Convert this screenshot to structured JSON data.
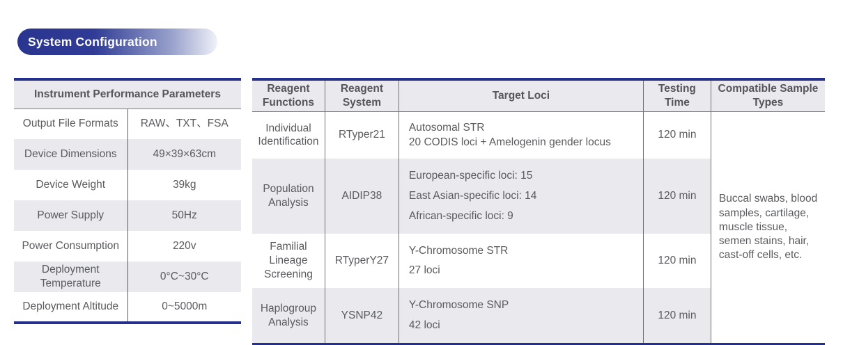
{
  "section_title": "System Configuration",
  "colors": {
    "navy": "#24318c",
    "pill_gradient_start": "#2a3590",
    "pill_gradient_end": "#f0f1f8",
    "stripe_gray": "#e9e9ee",
    "header_text": "#56565a",
    "body_text": "#5a5b5e"
  },
  "left_table": {
    "title": "Instrument Performance Parameters",
    "rows": [
      {
        "label": "Output File Formats",
        "value": "RAW、TXT、FSA"
      },
      {
        "label": "Device Dimensions",
        "value": "49×39×63cm"
      },
      {
        "label": "Device Weight",
        "value": "39kg"
      },
      {
        "label": "Power Supply",
        "value": "50Hz"
      },
      {
        "label": "Power Consumption",
        "value": "220v"
      },
      {
        "label": "Deployment Temperature",
        "value": "0°C~30°C"
      },
      {
        "label": "Deployment Altitude",
        "value": "0~5000m"
      }
    ]
  },
  "right_table": {
    "headers": [
      "Reagent Functions",
      "Reagent System",
      "Target Loci",
      "Testing Time",
      "Compatible Sample Types"
    ],
    "rows": [
      {
        "function": "Individual Identification",
        "system": "RTyper21",
        "target_loci": [
          "Autosomal STR",
          "20 CODIS loci + Amelogenin gender locus"
        ],
        "testing_time": "120 min"
      },
      {
        "function": "Population Analysis",
        "system": "AIDIP38",
        "target_loci": [
          "European-specific loci: 15",
          "East Asian-specific loci: 14",
          "African-specific loci: 9"
        ],
        "testing_time": "120 min"
      },
      {
        "function": "Familial Lineage Screening",
        "system": "RTyperY27",
        "target_loci": [
          "Y-Chromosome STR",
          "27 loci"
        ],
        "testing_time": "120 min"
      },
      {
        "function": "Haplogroup Analysis",
        "system": "YSNP42",
        "target_loci": [
          "Y-Chromosome SNP",
          "42 loci"
        ],
        "testing_time": "120 min"
      }
    ],
    "compatible_sample_types": "Buccal swabs, blood samples, cartilage, muscle tissue, semen stains, hair, cast-off cells, etc."
  }
}
